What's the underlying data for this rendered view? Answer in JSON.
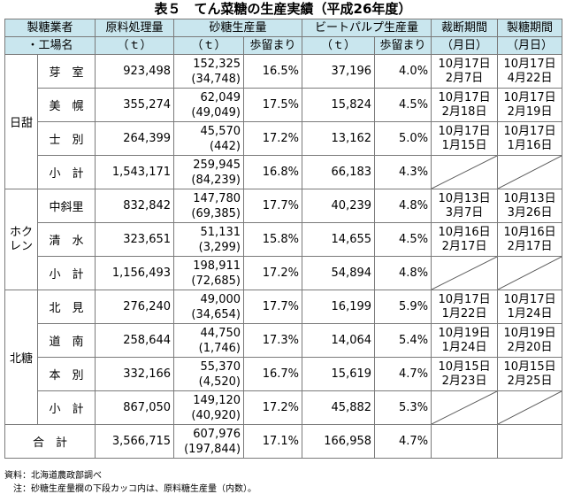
{
  "title": "表５　てん菜糖の生産実績（平成26年度）",
  "headers": {
    "col1_line1": "製糖業者",
    "col1_line2": "・工場名",
    "raw": "原料処理量",
    "raw_unit": "（ｔ）",
    "sugar": "砂糖生産量",
    "sugar_unit": "（ｔ）",
    "sugar_yield": "歩留まり",
    "pulp": "ビートパルプ生産量",
    "pulp_unit": "（ｔ）",
    "pulp_yield": "歩留まり",
    "harvest": "裁断期間",
    "harvest_unit": "（月日）",
    "refine": "製糖期間",
    "refine_unit": "（月日）"
  },
  "groups": [
    {
      "name": "日甜"
    },
    {
      "name_line1": "ホク",
      "name_line2": "レン"
    },
    {
      "name": "北糖"
    }
  ],
  "rows": [
    {
      "factory": "芽　室",
      "raw": "923,498",
      "sugar": "152,325",
      "sugar_sub": "(34,748)",
      "sugar_yield": "16.5%",
      "pulp": "37,196",
      "pulp_yield": "4.0%",
      "cut_start": "10月17日",
      "cut_end": "2月7日",
      "ref_start": "10月17日",
      "ref_end": "4月22日"
    },
    {
      "factory": "美　幌",
      "raw": "355,274",
      "sugar": "62,049",
      "sugar_sub": "(49,049)",
      "sugar_yield": "17.5%",
      "pulp": "15,824",
      "pulp_yield": "4.5%",
      "cut_start": "10月17日",
      "cut_end": "2月18日",
      "ref_start": "10月17日",
      "ref_end": "2月19日"
    },
    {
      "factory": "士　別",
      "raw": "264,399",
      "sugar": "45,570",
      "sugar_sub": "(442)",
      "sugar_yield": "17.2%",
      "pulp": "13,162",
      "pulp_yield": "5.0%",
      "cut_start": "10月17日",
      "cut_end": "1月15日",
      "ref_start": "10月17日",
      "ref_end": "1月16日"
    },
    {
      "factory": "小　計",
      "raw": "1,543,171",
      "sugar": "259,945",
      "sugar_sub": "(84,239)",
      "sugar_yield": "16.8%",
      "pulp": "66,183",
      "pulp_yield": "4.3%"
    },
    {
      "factory": "中斜里",
      "raw": "832,842",
      "sugar": "147,780",
      "sugar_sub": "(69,385)",
      "sugar_yield": "17.7%",
      "pulp": "40,239",
      "pulp_yield": "4.8%",
      "cut_start": "10月13日",
      "cut_end": "3月7日",
      "ref_start": "10月13日",
      "ref_end": "3月26日"
    },
    {
      "factory": "清　水",
      "raw": "323,651",
      "sugar": "51,131",
      "sugar_sub": "(3,299)",
      "sugar_yield": "15.8%",
      "pulp": "14,655",
      "pulp_yield": "4.5%",
      "cut_start": "10月16日",
      "cut_end": "2月17日",
      "ref_start": "10月16日",
      "ref_end": "2月17日"
    },
    {
      "factory": "小　計",
      "raw": "1,156,493",
      "sugar": "198,911",
      "sugar_sub": "(72,685)",
      "sugar_yield": "17.2%",
      "pulp": "54,894",
      "pulp_yield": "4.8%"
    },
    {
      "factory": "北　見",
      "raw": "276,240",
      "sugar": "49,000",
      "sugar_sub": "(34,654)",
      "sugar_yield": "17.7%",
      "pulp": "16,199",
      "pulp_yield": "5.9%",
      "cut_start": "10月17日",
      "cut_end": "1月22日",
      "ref_start": "10月17日",
      "ref_end": "1月24日"
    },
    {
      "factory": "道　南",
      "raw": "258,644",
      "sugar": "44,750",
      "sugar_sub": "(1,746)",
      "sugar_yield": "17.3%",
      "pulp": "14,064",
      "pulp_yield": "5.4%",
      "cut_start": "10月19日",
      "cut_end": "1月24日",
      "ref_start": "10月19日",
      "ref_end": "2月20日"
    },
    {
      "factory": "本　別",
      "raw": "332,166",
      "sugar": "55,370",
      "sugar_sub": "(4,520)",
      "sugar_yield": "16.7%",
      "pulp": "15,619",
      "pulp_yield": "4.7%",
      "cut_start": "10月15日",
      "cut_end": "2月23日",
      "ref_start": "10月15日",
      "ref_end": "2月25日"
    },
    {
      "factory": "小　計",
      "raw": "867,050",
      "sugar": "149,120",
      "sugar_sub": "(40,920)",
      "sugar_yield": "17.2%",
      "pulp": "45,882",
      "pulp_yield": "5.3%"
    }
  ],
  "total": {
    "label": "合　計",
    "raw": "3,566,715",
    "sugar": "607,976",
    "sugar_sub": "(197,844)",
    "sugar_yield": "17.1%",
    "pulp": "166,958",
    "pulp_yield": "4.7%"
  },
  "notes": {
    "source": "資料：北海道農政部調べ",
    "note": "注：砂糖生産量欄の下段カッコ内は、原料糖生産量（内数）。"
  },
  "colors": {
    "header_bg": "#c9e6ee",
    "border": "#7a7a7a"
  }
}
